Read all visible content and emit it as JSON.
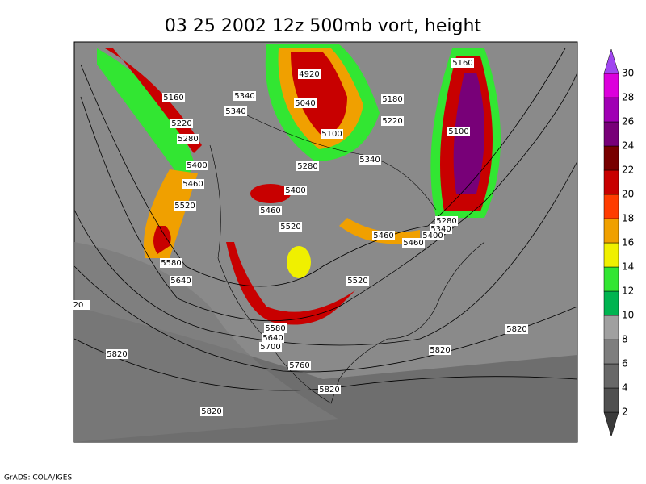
{
  "title": "03 25 2002 12z 500mb vort, height",
  "footer": "GrADS: COLA/IGES",
  "contour_labels": [
    "5160",
    "5220",
    "5280",
    "5400",
    "5460",
    "5520",
    "5580",
    "5640",
    "20",
    "5340",
    "5340",
    "4920",
    "5040",
    "5100",
    "5180",
    "5220",
    "5280",
    "5400",
    "5460",
    "5520",
    "5340",
    "5160",
    "5100",
    "5280",
    "5340",
    "5400",
    "5460",
    "5460",
    "5520",
    "5580",
    "5640",
    "5700",
    "5760",
    "5820",
    "5820",
    "5820",
    "5820",
    "5820"
  ],
  "colorbar": {
    "levels": [
      2,
      4,
      6,
      8,
      10,
      12,
      14,
      16,
      18,
      20,
      22,
      24,
      26,
      28,
      30
    ],
    "colors": [
      "#3a3a3a",
      "#505050",
      "#686868",
      "#7e7e7e",
      "#a0a0a0",
      "#00b450",
      "#32e632",
      "#f0f000",
      "#f0a000",
      "#ff3c00",
      "#c80000",
      "#780000",
      "#780078",
      "#a000b4",
      "#dc00dc",
      "#a046f0"
    ]
  }
}
